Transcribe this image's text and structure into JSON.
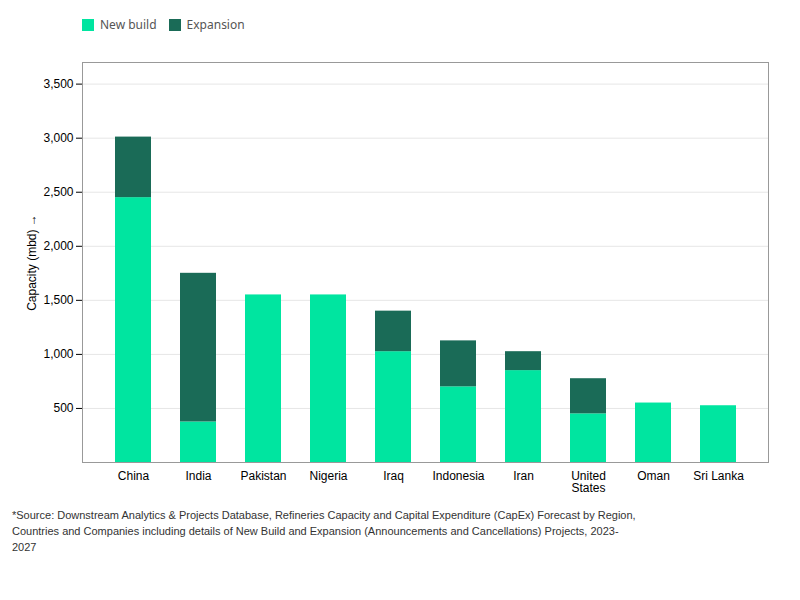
{
  "chart_data": {
    "type": "bar",
    "stacked": true,
    "categories": [
      "China",
      "India",
      "Pakistan",
      "Nigeria",
      "Iraq",
      "Indonesia",
      "Iran",
      "United\nStates",
      "Oman",
      "Sri Lanka"
    ],
    "series": [
      {
        "name": "New build",
        "color": "#00E5A0",
        "values": [
          2450,
          375,
          1550,
          1550,
          1025,
          700,
          850,
          450,
          550,
          525
        ]
      },
      {
        "name": "Expansion",
        "color": "#1A6B57",
        "values": [
          560,
          1375,
          0,
          0,
          375,
          425,
          175,
          325,
          0,
          0
        ]
      }
    ],
    "ylabel": "Capacity (mbd)",
    "ylim": [
      0,
      3700
    ],
    "yticks": [
      500,
      {
        "value": 1000,
        "label": "1,000"
      },
      {
        "value": 1500,
        "label": "1,500"
      },
      {
        "value": 2000,
        "label": "2,000"
      },
      {
        "value": 2500,
        "label": "2,500"
      },
      {
        "value": 3000,
        "label": "3,000"
      },
      {
        "value": 3500,
        "label": "3,500"
      }
    ],
    "grid": true,
    "legend": "top",
    "annotations": [
      "*Source: Downstream Analytics & Projects Database, Refineries Capacity and Capital Expenditure (CapEx) Forecast by Region,",
      "Countries and Companies including details of New Build and Expansion (Announcements and Cancellations) Projects, 2023-",
      "2027"
    ]
  }
}
